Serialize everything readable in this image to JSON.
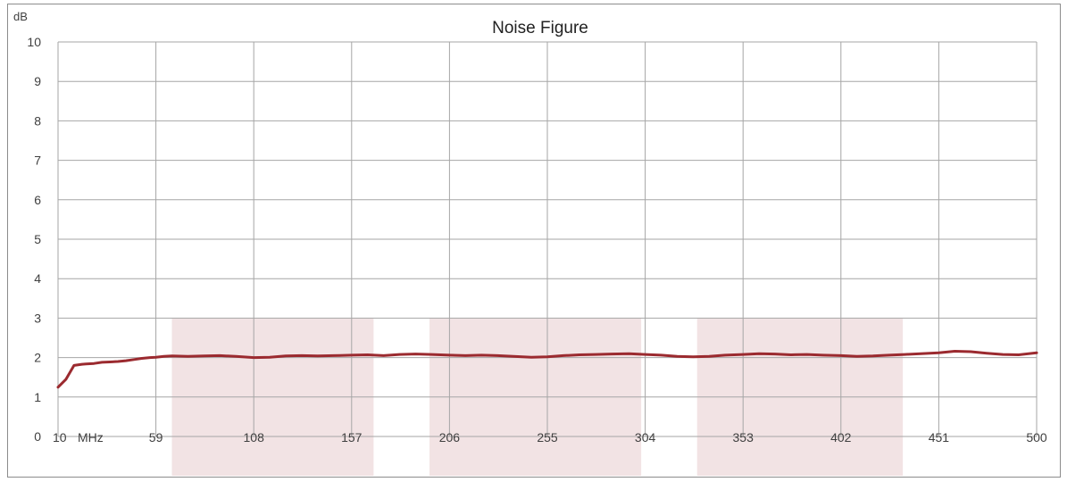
{
  "chart_data": {
    "type": "line",
    "title": "Noise Figure",
    "ylabel": "dB",
    "xlabel": "MHz",
    "x_ticks": [
      10,
      59,
      108,
      157,
      206,
      255,
      304,
      353,
      402,
      451,
      500
    ],
    "y_ticks": [
      0,
      1,
      2,
      3,
      4,
      5,
      6,
      7,
      8,
      9,
      10
    ],
    "xlim": [
      10,
      500
    ],
    "ylim": [
      0,
      10
    ],
    "grid": true,
    "highlight_bands": [
      {
        "x": [
          67,
          168
        ],
        "y": [
          0,
          3
        ]
      },
      {
        "x": [
          196,
          302
        ],
        "y": [
          0,
          3
        ]
      },
      {
        "x": [
          330,
          433
        ],
        "y": [
          0,
          3
        ]
      }
    ],
    "colors": {
      "line": "#9b2a2f",
      "band": "#f2e3e4",
      "grid": "#a6a6a6",
      "frame": "#8c8c8c"
    },
    "series": [
      {
        "x": [
          10,
          14,
          18,
          22,
          24,
          28,
          32,
          36,
          40,
          44,
          48,
          52,
          56,
          59,
          63,
          67,
          75,
          83,
          91,
          99,
          108,
          116,
          124,
          132,
          140,
          148,
          157,
          165,
          173,
          181,
          189,
          197,
          206,
          214,
          222,
          230,
          238,
          247,
          255,
          263,
          271,
          279,
          287,
          296,
          304,
          312,
          320,
          328,
          336,
          344,
          353,
          361,
          369,
          377,
          385,
          393,
          402,
          410,
          418,
          426,
          434,
          442,
          451,
          459,
          467,
          475,
          483,
          491,
          500
        ],
        "values": [
          1.25,
          1.45,
          1.8,
          1.83,
          1.84,
          1.85,
          1.88,
          1.89,
          1.9,
          1.92,
          1.95,
          1.98,
          2.0,
          2.01,
          2.03,
          2.04,
          2.03,
          2.04,
          2.05,
          2.03,
          2.0,
          2.01,
          2.04,
          2.05,
          2.04,
          2.05,
          2.06,
          2.07,
          2.05,
          2.08,
          2.09,
          2.08,
          2.06,
          2.05,
          2.06,
          2.05,
          2.03,
          2.01,
          2.02,
          2.05,
          2.07,
          2.08,
          2.09,
          2.1,
          2.08,
          2.06,
          2.03,
          2.02,
          2.03,
          2.06,
          2.08,
          2.1,
          2.09,
          2.07,
          2.08,
          2.06,
          2.05,
          2.03,
          2.04,
          2.06,
          2.08,
          2.1,
          2.12,
          2.16,
          2.15,
          2.11,
          2.08,
          2.07,
          2.12
        ]
      }
    ]
  }
}
